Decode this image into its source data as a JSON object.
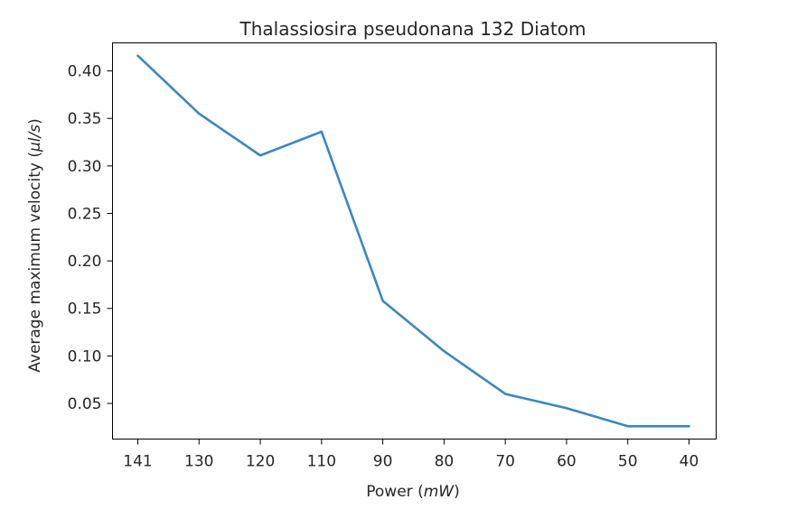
{
  "chart_data": {
    "type": "line",
    "title": "Thalassiosira pseudonana 132 Diatom",
    "xlabel": "Power (mW)",
    "ylabel": "Average maximum velocity (μl/s)",
    "categories": [
      "141",
      "130",
      "120",
      "110",
      "90",
      "80",
      "70",
      "60",
      "50",
      "40"
    ],
    "series": [
      {
        "values": [
          0.416,
          0.355,
          0.311,
          0.336,
          0.158,
          0.105,
          0.06,
          0.045,
          0.026,
          0.026
        ],
        "color": "#3b87c0"
      }
    ],
    "yticks": [
      0.05,
      0.1,
      0.15,
      0.2,
      0.25,
      0.3,
      0.35,
      0.4
    ],
    "ylim": [
      0.0125,
      0.4295
    ],
    "grid": false
  }
}
